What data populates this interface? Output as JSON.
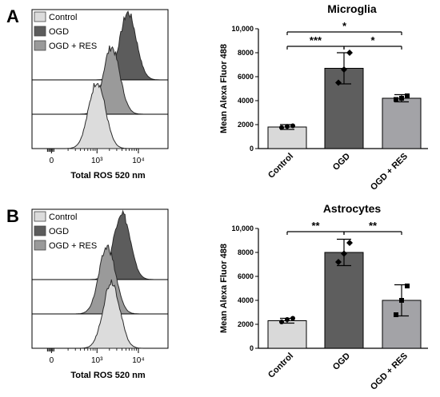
{
  "chart_data": [
    {
      "panel": "A",
      "histogram": {
        "legend": [
          "Control",
          "OGD",
          "OGD + RES"
        ],
        "xlabel": "Total ROS 520 nm",
        "xticks": [
          "0",
          "10³",
          "10⁴"
        ],
        "colors": {
          "Control": "#dcdcdc",
          "OGD": "#5c5c5c",
          "OGD + RES": "#9a9a9a"
        },
        "peaks_log10": {
          "OGD": 3.75,
          "OGD + RES": 3.35,
          "Control": 3.0
        }
      },
      "bar": {
        "type": "bar",
        "title": "Microglia",
        "ylabel": "Mean Alexa Fluor 488",
        "ylim": [
          0,
          10000
        ],
        "yticks": [
          "0",
          "2000",
          "4000",
          "6000",
          "8000",
          "10,000"
        ],
        "categories": [
          "Control",
          "OGD",
          "OGD + RES"
        ],
        "values": [
          1800,
          6700,
          4200
        ],
        "errors": [
          200,
          1300,
          300
        ],
        "points": [
          [
            1750,
            1850,
            1900
          ],
          [
            5500,
            6600,
            8000
          ],
          [
            4100,
            4200,
            4400
          ]
        ],
        "colors": [
          "#d9d9d9",
          "#5e5e5e",
          "#a3a3a7"
        ],
        "significance": [
          {
            "from": 0,
            "to": 2,
            "label": "*"
          },
          {
            "from": 0,
            "to": 1,
            "label": "***"
          },
          {
            "from": 1,
            "to": 2,
            "label": "*"
          }
        ]
      }
    },
    {
      "panel": "B",
      "histogram": {
        "legend": [
          "Control",
          "OGD",
          "OGD + RES"
        ],
        "xlabel": "Total ROS 520 nm",
        "xticks": [
          "0",
          "10³",
          "10⁴"
        ],
        "colors": {
          "Control": "#dcdcdc",
          "OGD": "#5c5c5c",
          "OGD + RES": "#9a9a9a"
        },
        "peaks_log10": {
          "OGD": 3.6,
          "OGD + RES": 3.25,
          "Control": 3.35
        }
      },
      "bar": {
        "type": "bar",
        "title": "Astrocytes",
        "ylabel": "Mean Alexa Fluor 488",
        "ylim": [
          0,
          10000
        ],
        "yticks": [
          "0",
          "2000",
          "4000",
          "6000",
          "8000",
          "10,000"
        ],
        "categories": [
          "Control",
          "OGD",
          "OGD + RES"
        ],
        "values": [
          2300,
          8000,
          4000
        ],
        "errors": [
          200,
          1100,
          1300
        ],
        "points": [
          [
            2200,
            2400,
            2500
          ],
          [
            7200,
            7900,
            8800
          ],
          [
            2800,
            4000,
            5200
          ]
        ],
        "colors": [
          "#d9d9d9",
          "#5e5e5e",
          "#a3a3a7"
        ],
        "significance": [
          {
            "from": 0,
            "to": 1,
            "label": "**"
          },
          {
            "from": 1,
            "to": 2,
            "label": "**"
          }
        ]
      }
    }
  ]
}
